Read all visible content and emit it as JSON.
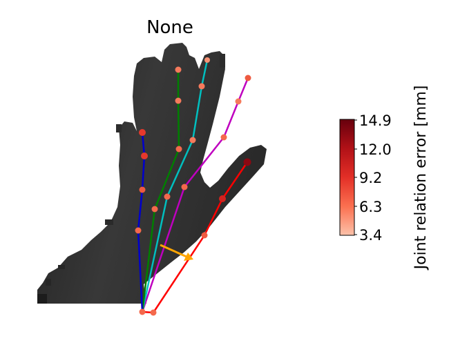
{
  "title": "None",
  "colorbar": {
    "label": "Joint relation error [mm]",
    "min": 3.4,
    "max": 14.9,
    "ticks": [
      "14.9",
      "12.0",
      "9.2",
      "6.3",
      "3.4"
    ],
    "colors": [
      "#fcc2aa",
      "#fb7050",
      "#e32f27",
      "#b11117",
      "#67000d"
    ]
  },
  "skeleton_colors": {
    "thumb": "#ff0000",
    "index": "#bf00bf",
    "middle": "#00bfbf",
    "ring": "#007f00",
    "pinky": "#0000cc",
    "arrow": "#ffa500"
  }
}
